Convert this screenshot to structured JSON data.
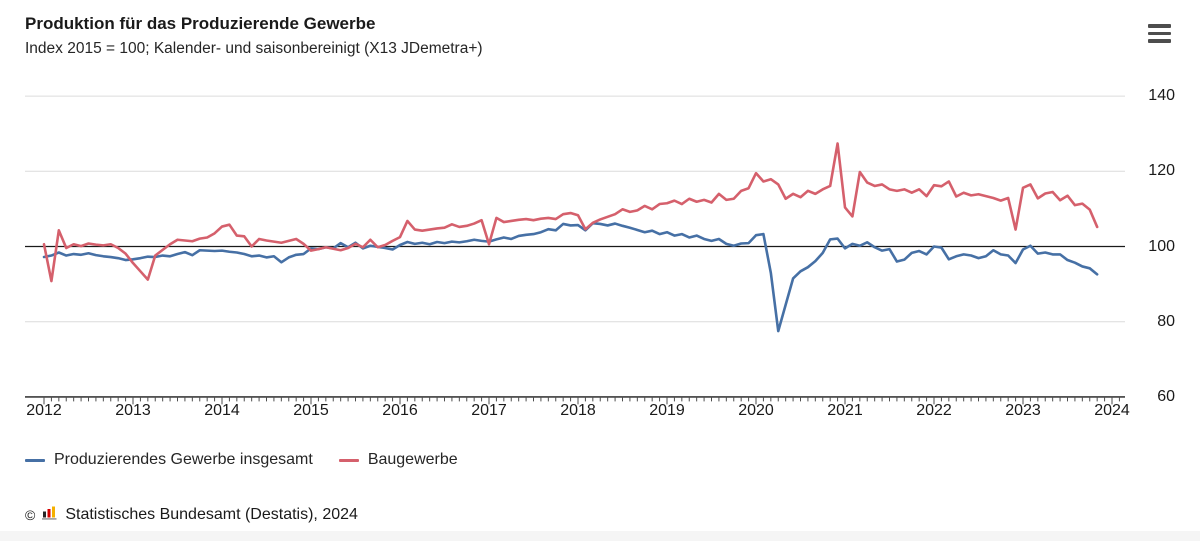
{
  "header": {
    "title": "Produktion für das Produzierende Gewerbe",
    "subtitle": "Index 2015 = 100; Kalender- und saisonbereinigt (X13 JDemetra+)"
  },
  "menu": {
    "icon": "hamburger-menu-icon"
  },
  "footer": {
    "copyright": "©",
    "logo_icon": "destatis-bar-chart-logo",
    "source": "Statistisches Bundesamt (Destatis), 2024"
  },
  "chart_data": {
    "type": "line",
    "title": "Produktion für das Produzierende Gewerbe",
    "subtitle": "Index 2015 = 100; Kalender- und saisonbereinigt (X13 JDemetra+)",
    "frequency": "monthly",
    "x_start": "2012-01",
    "x_end": "2023-11",
    "xticks": [
      2012,
      2013,
      2014,
      2015,
      2016,
      2017,
      2018,
      2019,
      2020,
      2021,
      2022,
      2023,
      2024
    ],
    "yticks": [
      140,
      120,
      100,
      80,
      60
    ],
    "ylim": [
      60,
      140
    ],
    "baseline": 100,
    "grid": "horizontal-light, black line at 100",
    "legend_position": "bottom-left",
    "series": [
      {
        "name": "Produzierendes Gewerbe insgesamt",
        "color": "#4670a5",
        "values": [
          97.2,
          97.6,
          98.4,
          97.6,
          98,
          97.8,
          98.2,
          97.7,
          97.4,
          97.2,
          96.9,
          96.4,
          96.6,
          96.9,
          97.3,
          97.2,
          97.6,
          97.4,
          98,
          98.5,
          97.7,
          99,
          98.9,
          98.8,
          98.9,
          98.6,
          98.4,
          98,
          97.4,
          97.6,
          97.1,
          97.4,
          95.8,
          97.1,
          97.8,
          98,
          99.5,
          99.3,
          99.8,
          99.5,
          100.9,
          99.8,
          101,
          99.5,
          100.2,
          99.9,
          99.6,
          99.2,
          100.4,
          101.2,
          100.7,
          101,
          100.6,
          101.2,
          100.9,
          101.3,
          101.1,
          101.4,
          101.8,
          101.5,
          101.3,
          101.9,
          102.4,
          102,
          102.8,
          103.1,
          103.3,
          103.8,
          104.6,
          104.3,
          106,
          105.6,
          105.7,
          104.3,
          106.2,
          106,
          105.6,
          106.1,
          105.5,
          105,
          104.4,
          103.8,
          104.2,
          103.3,
          103.8,
          102.9,
          103.3,
          102.4,
          102.9,
          102,
          101.5,
          102,
          100.7,
          100.2,
          100.8,
          100.9,
          103,
          103.3,
          93,
          77.5,
          84.5,
          91.5,
          93.4,
          94.5,
          96.1,
          98.3,
          101.9,
          102.1,
          99.5,
          100.7,
          100.2,
          101.1,
          99.8,
          98.9,
          99.3,
          96,
          96.5,
          98.3,
          98.8,
          97.9,
          100,
          99.7,
          96.6,
          97.4,
          97.9,
          97.6,
          96.9,
          97.4,
          99,
          97.9,
          97.6,
          95.6,
          99.2,
          100.2,
          98.1,
          98.4,
          97.9,
          97.9,
          96.4,
          95.7,
          94.7,
          94.2,
          92.6
        ]
      },
      {
        "name": "Baugewerbe",
        "color": "#d5606c",
        "values": [
          100.6,
          90.8,
          104.3,
          99.6,
          100.6,
          100.1,
          100.8,
          100.5,
          100.3,
          100.6,
          99.6,
          98.1,
          95.6,
          93.4,
          91.2,
          97.6,
          99.1,
          100.6,
          101.8,
          101.6,
          101.4,
          102.1,
          102.4,
          103.5,
          105.3,
          105.8,
          102.9,
          102.7,
          100,
          102,
          101.6,
          101.3,
          101,
          101.5,
          102,
          100.7,
          98.9,
          99.3,
          99.8,
          99.4,
          99,
          99.6,
          100.7,
          99.8,
          101.8,
          99.8,
          100.4,
          101.5,
          102.5,
          106.8,
          104.5,
          104.2,
          104.5,
          104.8,
          105,
          105.9,
          105.2,
          105.5,
          106.1,
          107,
          100.6,
          107.6,
          106.5,
          106.8,
          107.1,
          107.3,
          107,
          107.4,
          107.6,
          107.3,
          108.6,
          108.9,
          108.3,
          104.6,
          106.3,
          107.2,
          107.9,
          108.6,
          109.9,
          109.2,
          109.6,
          110.8,
          109.9,
          111.3,
          111.5,
          112.2,
          111.3,
          112.7,
          111.9,
          112.4,
          111.7,
          114,
          112.4,
          112.7,
          114.8,
          115.5,
          119.5,
          117.3,
          117.9,
          116.5,
          112.7,
          114,
          113.1,
          114.8,
          114,
          115.2,
          116.1,
          127.4,
          110.4,
          108,
          119.8,
          117,
          116.1,
          116.5,
          115.2,
          114.8,
          115.2,
          114.3,
          115.2,
          113.4,
          116.3,
          116,
          117.3,
          113.3,
          114.3,
          113.6,
          113.9,
          113.4,
          112.9,
          112.2,
          112.9,
          104.5,
          115.6,
          116.5,
          112.8,
          114.1,
          114.5,
          112.3,
          113.5,
          111,
          111.4,
          109.8,
          105.2
        ]
      }
    ]
  }
}
